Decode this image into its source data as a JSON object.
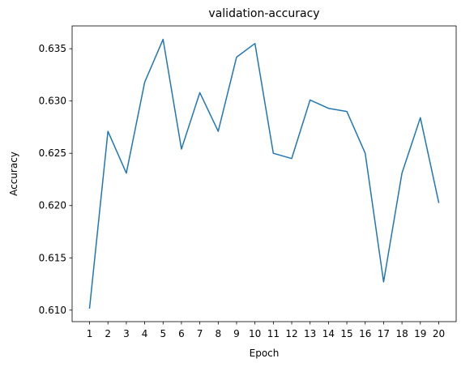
{
  "chart_data": {
    "type": "line",
    "title": "validation-accuracy",
    "xlabel": "Epoch",
    "ylabel": "Accuracy",
    "x": [
      1,
      2,
      3,
      4,
      5,
      6,
      7,
      8,
      9,
      10,
      11,
      12,
      13,
      14,
      15,
      16,
      17,
      18,
      19,
      20
    ],
    "series": [
      {
        "color": "#1f77b4",
        "values": [
          0.6102,
          0.6271,
          0.6231,
          0.6318,
          0.6359,
          0.6254,
          0.6308,
          0.6271,
          0.6342,
          0.6355,
          0.625,
          0.6245,
          0.6301,
          0.6293,
          0.629,
          0.625,
          0.6127,
          0.6231,
          0.6284,
          0.6203
        ]
      }
    ],
    "xlim": [
      0.05,
      20.95
    ],
    "ylim": [
      0.6089,
      0.63718
    ],
    "yticks": [
      0.61,
      0.615,
      0.62,
      0.625,
      0.63,
      0.635
    ],
    "ytick_labels": [
      "0.610",
      "0.615",
      "0.620",
      "0.625",
      "0.630",
      "0.635"
    ],
    "xtick_labels": [
      "1",
      "2",
      "3",
      "4",
      "5",
      "6",
      "7",
      "8",
      "9",
      "10",
      "11",
      "12",
      "13",
      "14",
      "15",
      "16",
      "17",
      "18",
      "19",
      "20"
    ],
    "grid": false,
    "legend": "none"
  }
}
